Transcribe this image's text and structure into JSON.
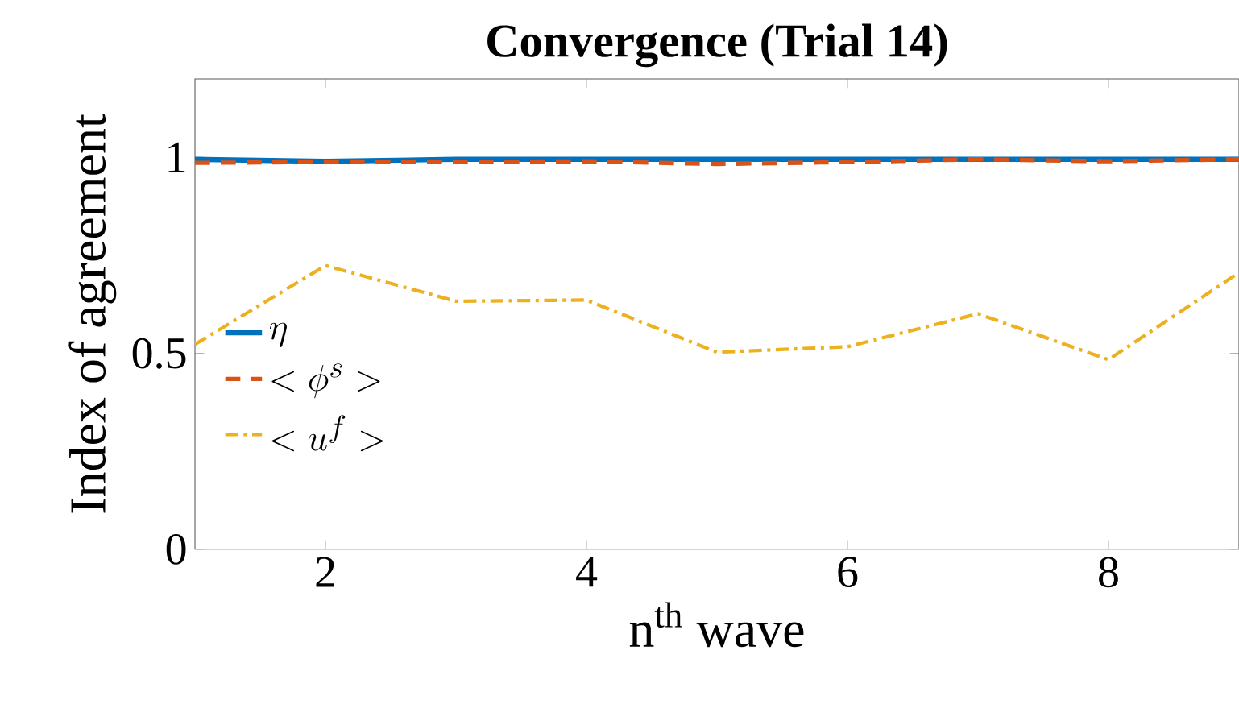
{
  "chart_data": {
    "type": "line",
    "title": "Convergence (Trial 14)",
    "xlabel": "n$^{th}$ wave",
    "ylabel": "Index of agreement",
    "x": [
      1,
      2,
      3,
      4,
      5,
      6,
      7,
      8,
      9
    ],
    "series": [
      {
        "name": "\\eta",
        "color": "#0072bd",
        "line_style": "solid",
        "values": [
          0.995,
          0.99,
          0.995,
          0.995,
          0.995,
          0.995,
          0.995,
          0.995,
          0.995
        ]
      },
      {
        "name": "<\\phi^{s}>",
        "color": "#d95319",
        "line_style": "dashed",
        "values": [
          0.986,
          0.988,
          0.988,
          0.99,
          0.983,
          0.988,
          0.995,
          0.99,
          0.995
        ]
      },
      {
        "name": "<u^{f}>",
        "color": "#edb120",
        "line_style": "dashdot",
        "values": [
          0.523,
          0.724,
          0.633,
          0.636,
          0.503,
          0.517,
          0.601,
          0.484,
          0.706
        ]
      }
    ],
    "xlim": [
      1,
      9
    ],
    "xticks": [
      2,
      4,
      6,
      8
    ],
    "ylim": [
      0,
      1.2
    ],
    "yticks": [
      0,
      0.5,
      1
    ],
    "grid": false,
    "legend": "left",
    "marker": "none"
  }
}
